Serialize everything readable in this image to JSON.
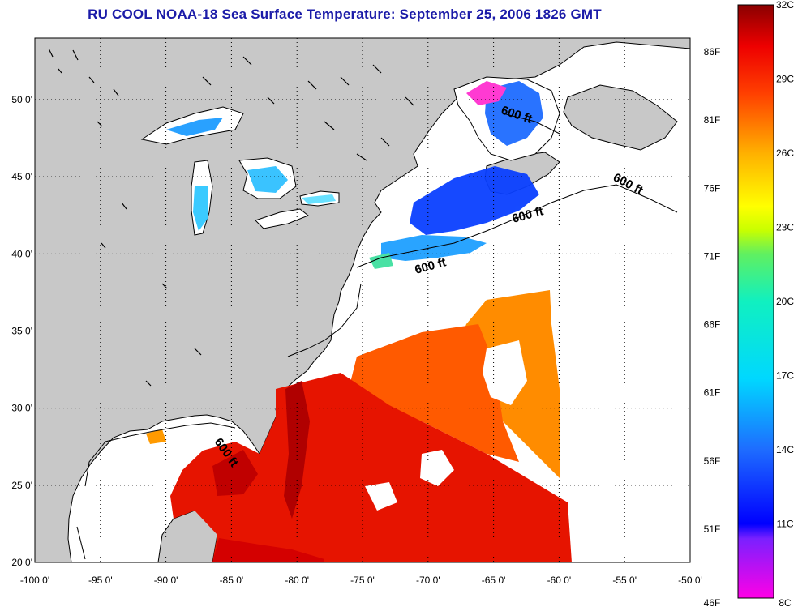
{
  "title": "RU COOL  NOAA-18  Sea Surface Temperature:  September 25, 2006 1826 GMT",
  "longitude_labels": [
    "-100 0'",
    "-95 0'",
    "-90 0'",
    "-85 0'",
    "-80 0'",
    "-75 0'",
    "-70 0'",
    "-65 0'",
    "-60 0'",
    "-55 0'",
    "-50 0'"
  ],
  "latitude_labels": [
    "50 0'",
    "45 0'",
    "40 0'",
    "35 0'",
    "30 0'",
    "25 0'",
    "20 0'"
  ],
  "depth_contour_label": "600 ft",
  "colorbar": {
    "fahrenheit_labels": [
      "86F",
      "81F",
      "76F",
      "71F",
      "66F",
      "61F",
      "56F",
      "51F",
      "46F"
    ],
    "celsius_labels": [
      "32C",
      "29C",
      "26C",
      "23C",
      "20C",
      "17C",
      "14C",
      "11C",
      "8C"
    ],
    "range_celsius": [
      8,
      32
    ]
  },
  "colors": {
    "title": "#1b1ba8",
    "land": "#c8c8c8",
    "warm": "#d40000",
    "cool": "#1e50ff"
  }
}
